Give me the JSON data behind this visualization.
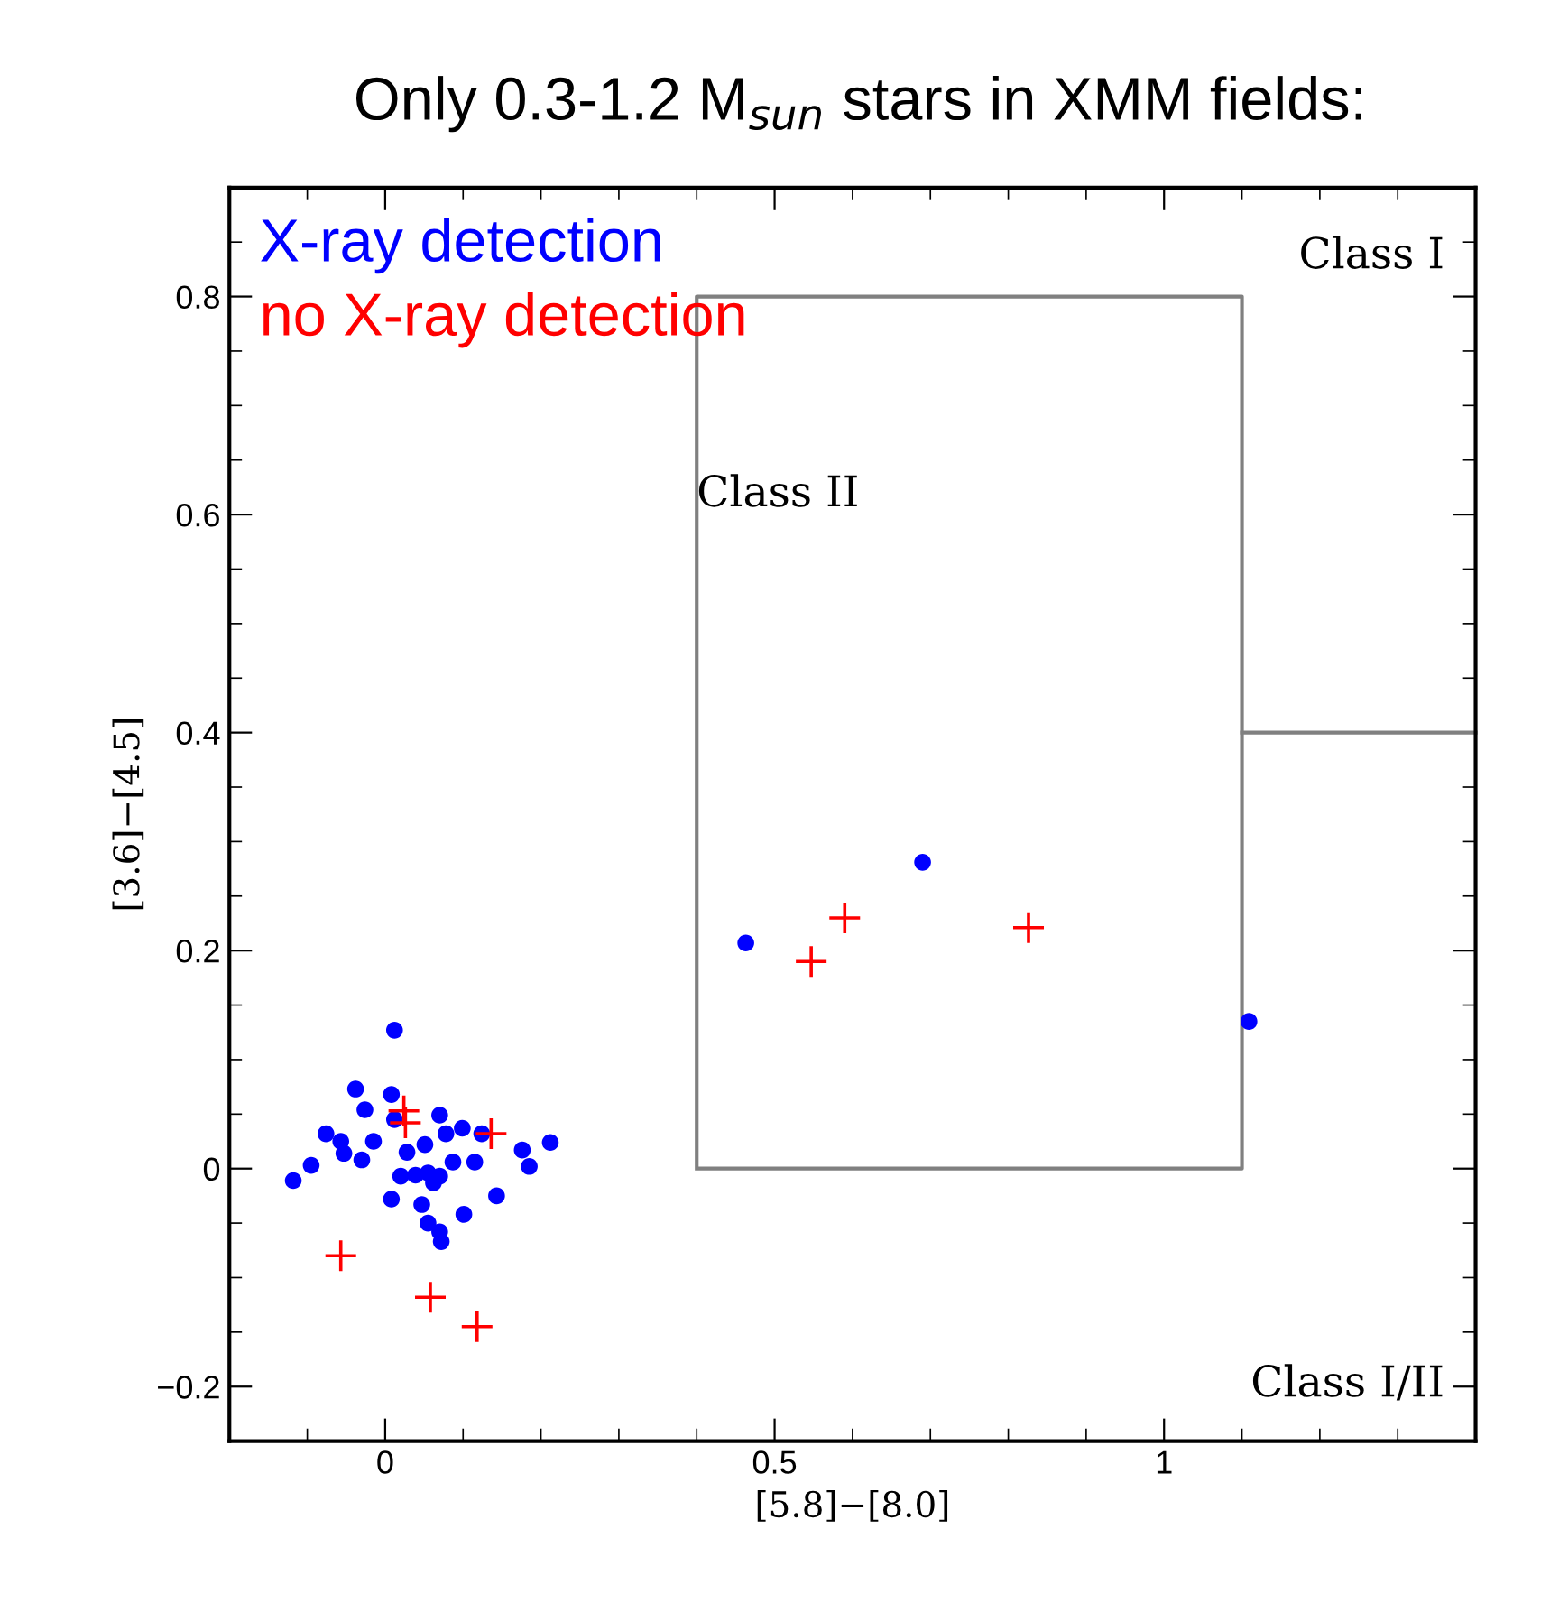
{
  "chart_data": {
    "type": "scatter",
    "title": "Only 0.3-1.2 M$_{sun}$ stars in XMM fields:",
    "xlabel": "[5.8]−[8.0]",
    "ylabel": "[3.6]−[4.5]",
    "xlim": [
      -0.2,
      1.4
    ],
    "ylim": [
      -0.25,
      0.9
    ],
    "xticks": [
      0,
      0.5,
      1
    ],
    "yticks": [
      {
        "value": -0.2,
        "label": "−0.2"
      },
      0,
      0.2,
      0.4,
      0.6,
      0.8
    ],
    "grid": false,
    "legend": "top left",
    "series": [
      {
        "name": "X-ray detection",
        "color": "#0000ff",
        "marker": "circle",
        "x": [
          0.012,
          -0.038,
          0.008,
          -0.026,
          0.012,
          0.07,
          -0.076,
          -0.057,
          -0.053,
          -0.015,
          -0.03,
          -0.095,
          -0.118,
          0.078,
          0.099,
          0.124,
          0.051,
          0.028,
          0.087,
          0.115,
          0.02,
          0.039,
          0.055,
          0.07,
          0.062,
          0.008,
          0.047,
          0.055,
          0.07,
          0.072,
          0.101,
          0.143,
          0.176,
          0.185,
          0.212,
          0.463,
          0.69,
          1.109
        ],
        "values": [
          0.127,
          0.073,
          0.068,
          0.054,
          0.045,
          0.049,
          0.032,
          0.025,
          0.014,
          0.025,
          0.008,
          0.003,
          -0.011,
          0.032,
          0.037,
          0.032,
          0.022,
          0.015,
          0.006,
          0.006,
          -0.007,
          -0.006,
          -0.004,
          -0.007,
          -0.013,
          -0.028,
          -0.033,
          -0.05,
          -0.058,
          -0.067,
          -0.042,
          -0.025,
          0.017,
          0.002,
          0.024,
          0.207,
          0.281,
          0.135
        ]
      },
      {
        "name": "no X-ray detection",
        "color": "#ff0000",
        "marker": "cross",
        "x": [
          0.024,
          0.026,
          0.136,
          -0.057,
          0.058,
          0.118,
          0.59,
          0.547,
          0.826
        ],
        "values": [
          0.053,
          0.042,
          0.032,
          -0.08,
          -0.118,
          -0.145,
          0.23,
          0.19,
          0.221
        ]
      }
    ],
    "annotations": [
      "Class I",
      "Class II",
      "Class I/II"
    ]
  }
}
